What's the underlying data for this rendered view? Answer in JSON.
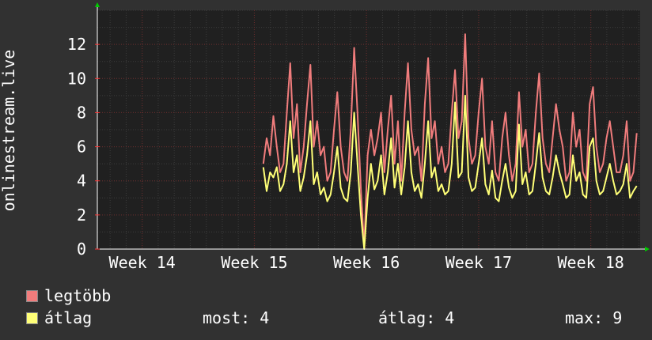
{
  "chart_data": {
    "type": "line",
    "ylabel": "onlinestream.live",
    "ylim": [
      0,
      14
    ],
    "yticks": [
      0,
      2,
      4,
      6,
      8,
      10,
      12
    ],
    "xlim": [
      13.6,
      18.44
    ],
    "xtick_labels": [
      {
        "x": 14,
        "label": "Week 14"
      },
      {
        "x": 15,
        "label": "Week 15"
      },
      {
        "x": 16,
        "label": "Week 16"
      },
      {
        "x": 17,
        "label": "Week 17"
      },
      {
        "x": 18,
        "label": "Week 18"
      }
    ],
    "grid": true,
    "legend_position": "bottom-left",
    "series": [
      {
        "name": "legtöbb",
        "color": "#f07c7c",
        "x": [
          15.08,
          15.11,
          15.14,
          15.17,
          15.2,
          15.23,
          15.26,
          15.29,
          15.32,
          15.35,
          15.38,
          15.41,
          15.44,
          15.47,
          15.5,
          15.53,
          15.56,
          15.59,
          15.62,
          15.65,
          15.68,
          15.71,
          15.74,
          15.77,
          15.8,
          15.83,
          15.86,
          15.89,
          15.92,
          15.95,
          15.98,
          16.01,
          16.04,
          16.07,
          16.1,
          16.13,
          16.16,
          16.19,
          16.22,
          16.25,
          16.28,
          16.31,
          16.34,
          16.37,
          16.4,
          16.43,
          16.46,
          16.49,
          16.52,
          16.55,
          16.58,
          16.61,
          16.64,
          16.67,
          16.7,
          16.73,
          16.76,
          16.79,
          16.82,
          16.85,
          16.88,
          16.91,
          16.94,
          16.97,
          17.0,
          17.03,
          17.06,
          17.09,
          17.12,
          17.15,
          17.18,
          17.21,
          17.24,
          17.27,
          17.3,
          17.33,
          17.36,
          17.39,
          17.42,
          17.45,
          17.48,
          17.51,
          17.54,
          17.57,
          17.6,
          17.63,
          17.66,
          17.69,
          17.72,
          17.75,
          17.78,
          17.81,
          17.84,
          17.87,
          17.9,
          17.93,
          17.96,
          17.99,
          18.02,
          18.05,
          18.08,
          18.11,
          18.14,
          18.17,
          18.2,
          18.23,
          18.26,
          18.29,
          18.32,
          18.35,
          18.38,
          18.41
        ],
        "values": [
          5.0,
          6.5,
          5.5,
          7.8,
          6.0,
          4.5,
          5.0,
          8.0,
          10.9,
          6.5,
          8.5,
          4.5,
          6.0,
          8.5,
          10.8,
          6.0,
          7.5,
          5.5,
          6.0,
          4.0,
          4.5,
          7.0,
          9.2,
          6.0,
          4.5,
          4.0,
          7.0,
          11.8,
          8.0,
          3.5,
          0.1,
          5.5,
          7.0,
          5.5,
          6.5,
          8.0,
          4.5,
          7.0,
          9.0,
          5.0,
          7.5,
          4.0,
          8.0,
          10.9,
          7.0,
          5.5,
          6.0,
          4.0,
          8.5,
          11.2,
          6.5,
          7.5,
          5.0,
          6.0,
          4.5,
          5.0,
          8.0,
          10.5,
          6.5,
          7.5,
          12.6,
          6.5,
          5.0,
          5.5,
          8.0,
          10.0,
          6.0,
          5.0,
          7.5,
          4.5,
          4.0,
          6.5,
          8.0,
          5.5,
          4.0,
          5.0,
          9.2,
          6.0,
          7.0,
          4.5,
          5.0,
          8.0,
          10.3,
          6.5,
          5.0,
          4.5,
          6.5,
          8.5,
          7.0,
          6.0,
          4.0,
          4.5,
          8.0,
          6.0,
          7.0,
          4.5,
          4.0,
          8.5,
          9.5,
          6.0,
          4.5,
          5.0,
          6.5,
          7.5,
          6.0,
          4.5,
          4.5,
          5.5,
          7.5,
          4.0,
          4.5,
          6.8
        ]
      },
      {
        "name": "átlag",
        "color": "#ffff77",
        "x": [
          15.08,
          15.11,
          15.14,
          15.17,
          15.2,
          15.23,
          15.26,
          15.29,
          15.32,
          15.35,
          15.38,
          15.41,
          15.44,
          15.47,
          15.5,
          15.53,
          15.56,
          15.59,
          15.62,
          15.65,
          15.68,
          15.71,
          15.74,
          15.77,
          15.8,
          15.83,
          15.86,
          15.89,
          15.92,
          15.95,
          15.98,
          16.01,
          16.04,
          16.07,
          16.1,
          16.13,
          16.16,
          16.19,
          16.22,
          16.25,
          16.28,
          16.31,
          16.34,
          16.37,
          16.4,
          16.43,
          16.46,
          16.49,
          16.52,
          16.55,
          16.58,
          16.61,
          16.64,
          16.67,
          16.7,
          16.73,
          16.76,
          16.79,
          16.82,
          16.85,
          16.88,
          16.91,
          16.94,
          16.97,
          17.0,
          17.03,
          17.06,
          17.09,
          17.12,
          17.15,
          17.18,
          17.21,
          17.24,
          17.27,
          17.3,
          17.33,
          17.36,
          17.39,
          17.42,
          17.45,
          17.48,
          17.51,
          17.54,
          17.57,
          17.6,
          17.63,
          17.66,
          17.69,
          17.72,
          17.75,
          17.78,
          17.81,
          17.84,
          17.87,
          17.9,
          17.93,
          17.96,
          17.99,
          18.02,
          18.05,
          18.08,
          18.11,
          18.14,
          18.17,
          18.2,
          18.23,
          18.26,
          18.29,
          18.32,
          18.35,
          18.38,
          18.41
        ],
        "values": [
          4.8,
          3.4,
          4.5,
          4.2,
          4.8,
          3.4,
          3.8,
          5.0,
          7.5,
          4.5,
          5.5,
          3.4,
          4.2,
          5.5,
          7.5,
          3.8,
          4.5,
          3.2,
          3.6,
          2.8,
          3.2,
          4.5,
          6.0,
          3.6,
          3.0,
          2.8,
          4.5,
          8.0,
          5.0,
          2.0,
          0.0,
          3.0,
          5.0,
          3.5,
          4.0,
          5.5,
          3.2,
          4.5,
          6.5,
          3.6,
          5.0,
          3.2,
          4.8,
          7.5,
          4.5,
          3.4,
          3.8,
          3.0,
          5.0,
          7.5,
          4.2,
          4.8,
          3.4,
          3.8,
          3.2,
          3.4,
          5.0,
          8.6,
          4.2,
          4.5,
          9.0,
          4.2,
          3.4,
          3.6,
          5.0,
          6.5,
          3.8,
          3.2,
          4.6,
          3.0,
          2.8,
          4.0,
          5.0,
          3.6,
          3.0,
          3.4,
          7.3,
          3.8,
          4.5,
          3.2,
          3.4,
          5.0,
          6.8,
          4.2,
          3.4,
          3.2,
          4.2,
          5.5,
          4.5,
          3.8,
          3.0,
          3.2,
          5.5,
          4.0,
          4.5,
          3.2,
          3.0,
          6.0,
          6.5,
          4.0,
          3.2,
          3.4,
          4.2,
          5.0,
          4.0,
          3.2,
          3.4,
          3.8,
          5.0,
          3.0,
          3.4,
          3.7
        ]
      }
    ]
  },
  "legend": [
    {
      "label": "legtöbb",
      "color": "#f07c7c"
    },
    {
      "label": "átlag",
      "color": "#ffff77"
    }
  ],
  "stats": {
    "now": "most: 4",
    "avg": "átlag: 4",
    "max": "max: 9"
  }
}
